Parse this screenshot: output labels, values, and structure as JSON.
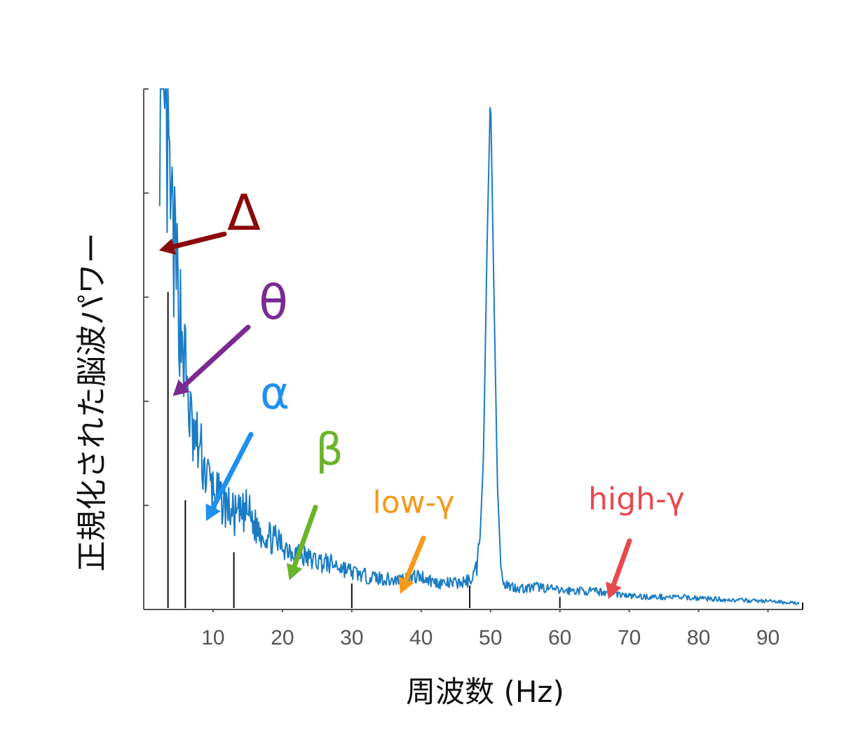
{
  "chart_data": {
    "type": "line",
    "xlabel": "周波数 (Hz)",
    "ylabel": "正規化された脳波パワー",
    "xlim": [
      0,
      95
    ],
    "ylim": [
      0,
      5
    ],
    "x_ticks": [
      10,
      20,
      30,
      40,
      50,
      60,
      70,
      80,
      90
    ],
    "y_ticks": [
      1,
      2,
      3,
      4
    ],
    "grid": false,
    "series": [
      {
        "color": "#1b7cc4",
        "x": [
          2.3,
          3,
          3.5,
          4,
          4.5,
          5,
          5.5,
          6,
          7,
          8,
          9,
          10,
          11,
          12,
          13,
          14,
          15,
          16,
          18,
          20,
          22,
          24,
          26,
          28,
          30,
          32,
          34,
          36,
          38,
          40,
          42,
          44,
          46,
          47,
          48,
          48.5,
          49,
          49.5,
          50,
          50.5,
          51,
          51.5,
          52,
          53,
          55,
          57,
          60,
          63,
          66,
          70,
          73,
          76,
          80,
          85,
          90,
          94.5
        ],
        "y": [
          5.0,
          4.6,
          4.2,
          3.7,
          3.3,
          3.0,
          2.7,
          2.3,
          1.65,
          1.55,
          1.3,
          1.15,
          1.05,
          1.0,
          0.9,
          0.9,
          0.95,
          0.8,
          0.7,
          0.62,
          0.55,
          0.48,
          0.45,
          0.42,
          0.36,
          0.32,
          0.3,
          0.28,
          0.3,
          0.32,
          0.26,
          0.25,
          0.26,
          0.28,
          0.4,
          0.7,
          1.5,
          3.5,
          5.0,
          3.0,
          1.2,
          0.4,
          0.26,
          0.22,
          0.2,
          0.22,
          0.18,
          0.18,
          0.17,
          0.13,
          0.12,
          0.12,
          0.11,
          0.09,
          0.08,
          0.06
        ]
      }
    ],
    "band_markers": [
      3.5,
      6,
      13,
      30,
      47,
      60
    ],
    "annotations": [
      {
        "text": "Δ",
        "color": "#8b0a0a",
        "x": 2.2,
        "y": 3.45
      },
      {
        "text": "θ",
        "color": "#7a2a92",
        "x": 4.2,
        "y": 2.05
      },
      {
        "text": "α",
        "color": "#1e90f0",
        "x": 9,
        "y": 0.85
      },
      {
        "text": "β",
        "color": "#6ab42a",
        "x": 21,
        "y": 0.28
      },
      {
        "text": "low-γ",
        "color": "#f49a1a",
        "x": 37,
        "y": 0.15
      },
      {
        "text": "high-γ",
        "color": "#e8484e",
        "x": 67,
        "y": 0.1
      }
    ]
  }
}
